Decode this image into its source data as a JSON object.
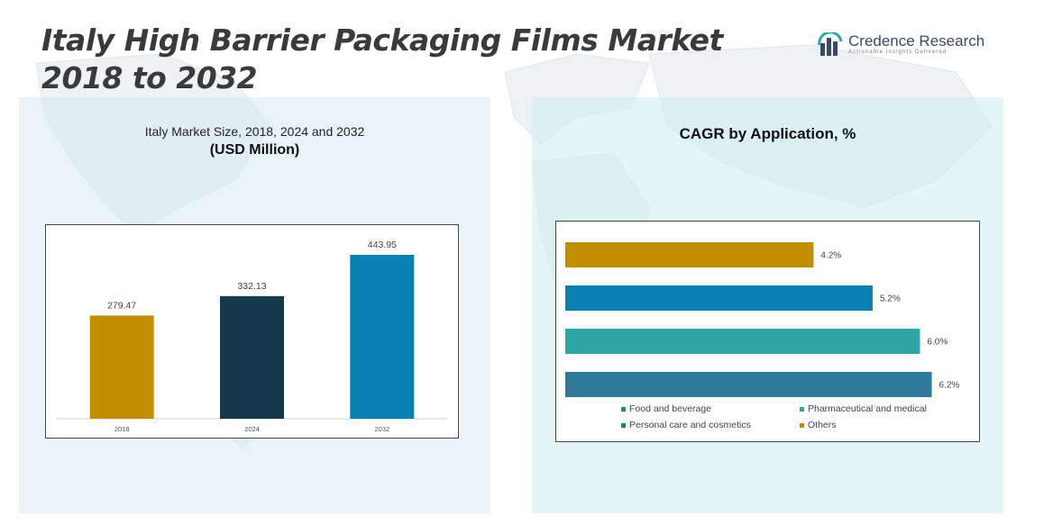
{
  "header": {
    "title": "Italy High Barrier Packaging Films Market 2018 to 2032",
    "logo": {
      "name": "Credence Research",
      "tagline": "Actionable Insights Delivered"
    }
  },
  "left_panel": {
    "title": "Italy Market Size, 2018, 2024 and 2032",
    "subtitle": "(USD Million)"
  },
  "right_panel": {
    "title": "CAGR by Application, %"
  },
  "chart_data": [
    {
      "type": "bar",
      "title": "Italy Market Size, 2018, 2024 and 2032",
      "ylabel": "(USD Million)",
      "categories": [
        "2018",
        "2024",
        "2032"
      ],
      "values": [
        279.47,
        332.13,
        443.95
      ],
      "value_labels": [
        "279.47",
        "332.13",
        "443.95"
      ],
      "colors": [
        "#bf8f00",
        "#163a4c",
        "#0a7fb2"
      ],
      "ylim": [
        0,
        500
      ],
      "grid": false,
      "legend": "none"
    },
    {
      "type": "bar",
      "orientation": "horizontal",
      "title": "CAGR by Application, %",
      "categories": [
        "Others",
        "Personal care and cosmetics",
        "Pharmaceutical and medical",
        "Food and beverage"
      ],
      "values": [
        4.2,
        5.2,
        6.0,
        6.2
      ],
      "value_labels": [
        "4.2%",
        "5.2%",
        "6.0%",
        "6.2%"
      ],
      "colors": [
        "#bf8f00",
        "#0a7fb2",
        "#2ea6a6",
        "#2e7898"
      ],
      "xlim": [
        0,
        7
      ],
      "grid": false,
      "legend": "bottom",
      "legend_items": [
        {
          "label": "Food and beverage",
          "color": "#2e7898"
        },
        {
          "label": "Pharmaceutical and medical",
          "color": "#2ea6a6"
        },
        {
          "label": "Personal care and cosmetics",
          "color": "#0a7fb2"
        },
        {
          "label": "Others",
          "color": "#bf8f00"
        }
      ]
    }
  ]
}
